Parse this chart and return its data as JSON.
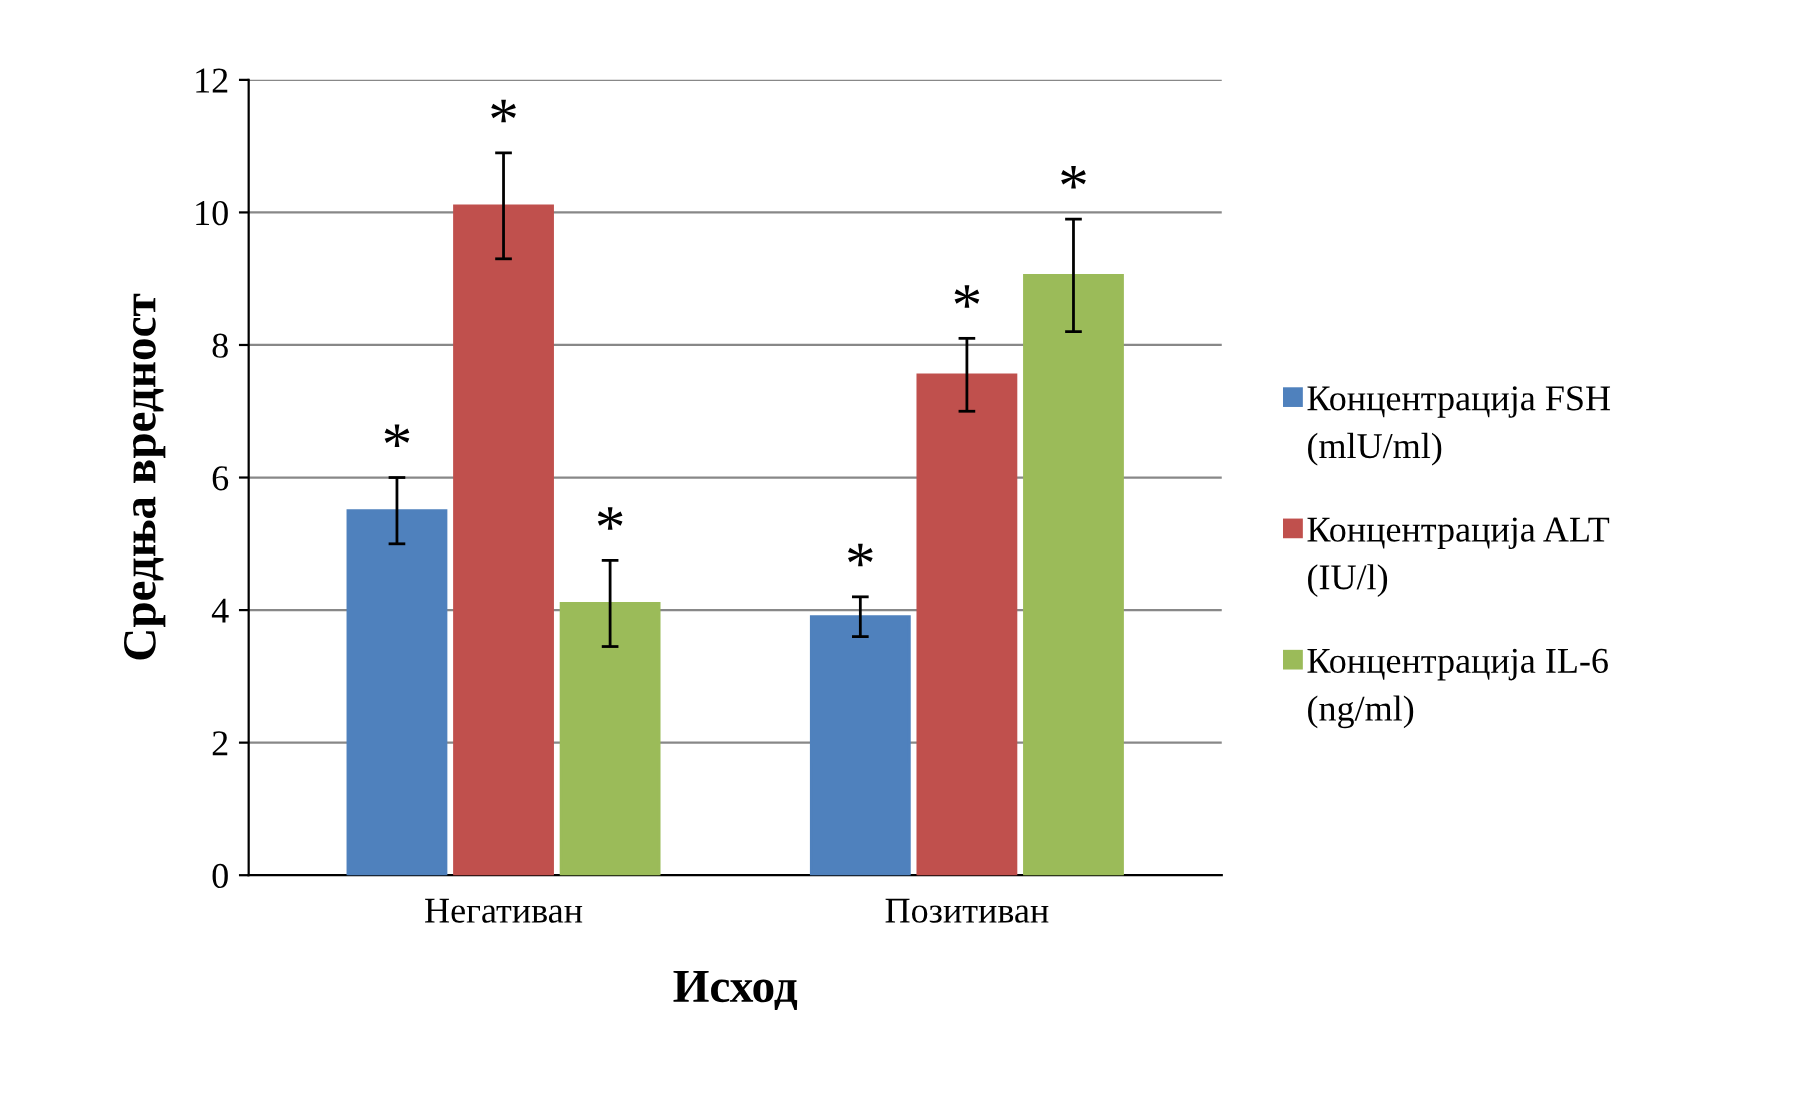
{
  "chart_data": {
    "type": "bar",
    "xlabel": "Исход",
    "ylabel": "Средња вредност",
    "categories": [
      "Негативан",
      "Позитиван"
    ],
    "series": [
      {
        "name": "Концентрација FSH (mlU/ml)",
        "color": "#4f81bd",
        "values": [
          5.5,
          3.9
        ],
        "errors": [
          0.5,
          0.3
        ]
      },
      {
        "name": "Концентрација ALT (IU/l)",
        "color": "#c0504d",
        "values": [
          10.1,
          7.55
        ],
        "errors": [
          0.8,
          0.55
        ]
      },
      {
        "name": "Концентрација IL-6 (ng/ml)",
        "color": "#9bbb59",
        "values": [
          4.1,
          9.05
        ],
        "errors": [
          0.65,
          0.85
        ]
      }
    ],
    "annotations": [
      "*",
      "*",
      "*",
      "*",
      "*",
      "*"
    ],
    "ylim": [
      0,
      12
    ],
    "yticks": [
      0,
      2,
      4,
      6,
      8,
      10,
      12
    ],
    "grid": "y",
    "legend": "right"
  }
}
